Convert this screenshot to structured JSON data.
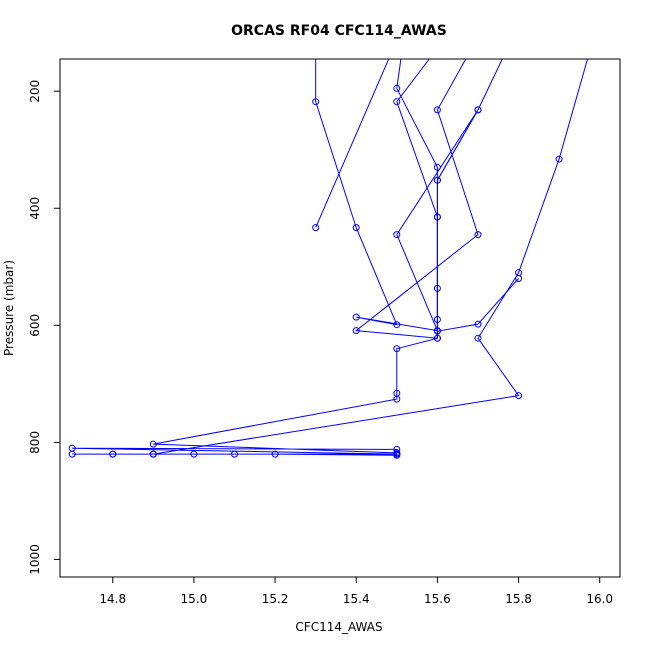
{
  "chart_data": {
    "type": "line",
    "title": "ORCAS RF04 CFC114_AWAS",
    "xlabel": "CFC114_AWAS",
    "ylabel": "Pressure (mbar)",
    "xlim": [
      14.67,
      16.05
    ],
    "ylim": [
      1030,
      145
    ],
    "y_reversed": true,
    "xticks": [
      "14.8",
      "15.0",
      "15.2",
      "15.4",
      "15.6",
      "15.8",
      "16.0"
    ],
    "yticks": [
      "200",
      "400",
      "600",
      "800",
      "1000"
    ],
    "grid": false,
    "marker": "open-circle",
    "series": [
      {
        "color": "#0000ff",
        "points": [
          {
            "x": 15.3,
            "y": 145
          },
          {
            "x": 15.3,
            "y": 218
          },
          {
            "x": 15.4,
            "y": 433
          },
          {
            "x": 15.5,
            "y": 599
          },
          {
            "x": 15.4,
            "y": 586
          },
          {
            "x": 15.6,
            "y": 609
          },
          {
            "x": 15.5,
            "y": 445
          },
          {
            "x": 15.7,
            "y": 232
          },
          {
            "x": 15.6,
            "y": 352
          },
          {
            "x": 15.6,
            "y": 415
          },
          {
            "x": 15.6,
            "y": 537
          },
          {
            "x": 15.6,
            "y": 622
          },
          {
            "x": 15.5,
            "y": 640
          },
          {
            "x": 15.5,
            "y": 716
          },
          {
            "x": 15.5,
            "y": 726
          },
          {
            "x": 14.9,
            "y": 803
          },
          {
            "x": 15.5,
            "y": 818
          },
          {
            "x": 15.5,
            "y": 820
          },
          {
            "x": 14.7,
            "y": 810
          },
          {
            "x": 15.5,
            "y": 812
          },
          {
            "x": 15.5,
            "y": 822
          },
          {
            "x": 15.2,
            "y": 820
          },
          {
            "x": 14.7,
            "y": 820
          },
          {
            "x": 14.8,
            "y": 820
          },
          {
            "x": 14.9,
            "y": 820
          },
          {
            "x": 14.8,
            "y": 820
          },
          {
            "x": 14.9,
            "y": 820
          },
          {
            "x": 15.0,
            "y": 820
          },
          {
            "x": 15.1,
            "y": 820
          },
          {
            "x": 15.5,
            "y": 820
          },
          {
            "x": 14.9,
            "y": 820
          },
          {
            "x": 15.8,
            "y": 720
          },
          {
            "x": 15.7,
            "y": 622
          },
          {
            "x": 15.8,
            "y": 510
          },
          {
            "x": 15.9,
            "y": 316
          },
          {
            "x": 15.97,
            "y": 145
          }
        ]
      },
      {
        "color": "#0000ff",
        "points": [
          {
            "x": 15.58,
            "y": 145
          },
          {
            "x": 15.5,
            "y": 218
          },
          {
            "x": 15.6,
            "y": 415
          },
          {
            "x": 15.6,
            "y": 590
          },
          {
            "x": 15.6,
            "y": 622
          },
          {
            "x": 15.4,
            "y": 609
          },
          {
            "x": 15.7,
            "y": 445
          },
          {
            "x": 15.6,
            "y": 232
          },
          {
            "x": 15.67,
            "y": 145
          }
        ]
      },
      {
        "color": "#0000ff",
        "points": [
          {
            "x": 15.48,
            "y": 145
          },
          {
            "x": 15.3,
            "y": 433
          }
        ]
      },
      {
        "color": "#0000ff",
        "points": [
          {
            "x": 15.51,
            "y": 145
          },
          {
            "x": 15.5,
            "y": 195
          },
          {
            "x": 15.6,
            "y": 330
          },
          {
            "x": 15.6,
            "y": 610
          },
          {
            "x": 15.7,
            "y": 598
          },
          {
            "x": 15.8,
            "y": 520
          }
        ]
      },
      {
        "color": "#0000ff",
        "points": [
          {
            "x": 15.76,
            "y": 145
          },
          {
            "x": 15.7,
            "y": 232
          },
          {
            "x": 15.6,
            "y": 352
          }
        ]
      }
    ]
  }
}
